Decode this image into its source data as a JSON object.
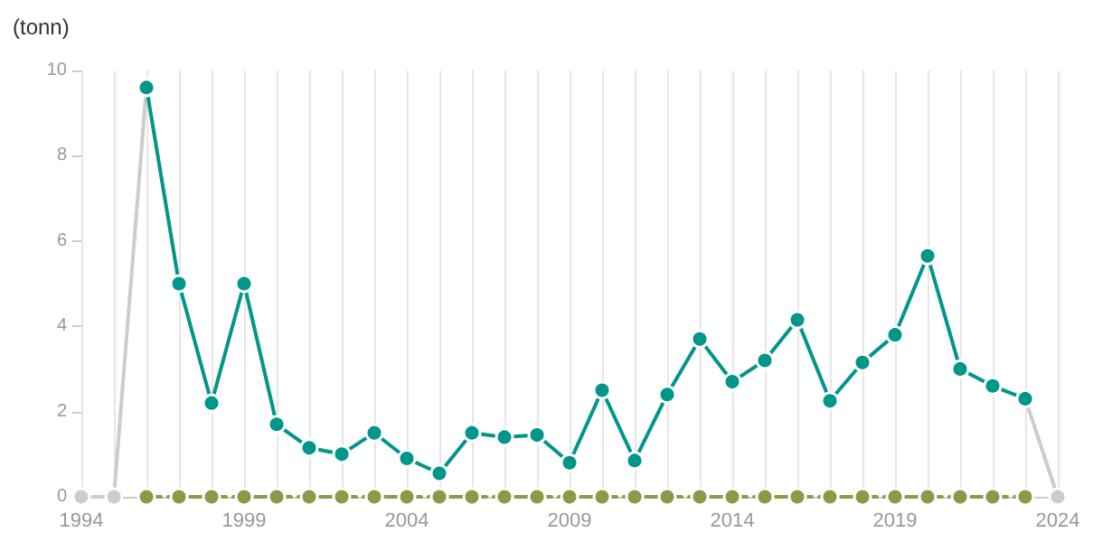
{
  "chart_data": {
    "type": "line",
    "ylabel": "(tonn)",
    "x": [
      1994,
      1995,
      1996,
      1997,
      1998,
      1999,
      2000,
      2001,
      2002,
      2003,
      2004,
      2005,
      2006,
      2007,
      2008,
      2009,
      2010,
      2011,
      2012,
      2013,
      2014,
      2015,
      2016,
      2017,
      2018,
      2019,
      2020,
      2021,
      2022,
      2023,
      2024
    ],
    "xlim": [
      1994,
      2024
    ],
    "xticks": [
      1994,
      {
        "value": 1995,
        "label": null
      },
      {
        "value": 1996,
        "label": null
      },
      {
        "value": 1997,
        "label": null
      },
      {
        "value": 1998,
        "label": null
      },
      1999,
      {
        "value": 2000,
        "label": null
      },
      {
        "value": 2001,
        "label": null
      },
      {
        "value": 2002,
        "label": null
      },
      {
        "value": 2003,
        "label": null
      },
      2004,
      {
        "value": 2005,
        "label": null
      },
      {
        "value": 2006,
        "label": null
      },
      {
        "value": 2007,
        "label": null
      },
      {
        "value": 2008,
        "label": null
      },
      2009,
      {
        "value": 2010,
        "label": null
      },
      {
        "value": 2011,
        "label": null
      },
      {
        "value": 2012,
        "label": null
      },
      {
        "value": 2013,
        "label": null
      },
      2014,
      {
        "value": 2015,
        "label": null
      },
      {
        "value": 2016,
        "label": null
      },
      {
        "value": 2017,
        "label": null
      },
      {
        "value": 2018,
        "label": null
      },
      2019,
      {
        "value": 2020,
        "label": null
      },
      {
        "value": 2021,
        "label": null
      },
      {
        "value": 2022,
        "label": null
      },
      {
        "value": 2023,
        "label": null
      },
      2024
    ],
    "ylim": [
      0,
      10
    ],
    "yticks": [
      0,
      2,
      4,
      6,
      8,
      10
    ],
    "grid": "x",
    "marker": "circle",
    "series": [
      {
        "color": "#cccccc",
        "values": [
          0,
          0,
          9.6,
          null,
          null,
          null,
          null,
          null,
          null,
          null,
          null,
          null,
          null,
          null,
          null,
          null,
          null,
          null,
          null,
          null,
          null,
          null,
          null,
          null,
          null,
          null,
          null,
          null,
          null,
          2.3,
          0
        ]
      },
      {
        "color": "#8c9a48",
        "line_style": "dashed",
        "values": [
          null,
          null,
          0,
          0,
          0,
          0,
          0,
          0,
          0,
          0,
          0,
          0,
          0,
          0,
          0,
          0,
          0,
          0,
          0,
          0,
          0,
          0,
          0,
          0,
          0,
          0,
          0,
          0,
          0,
          0,
          null
        ]
      },
      {
        "color": "#00968a",
        "values": [
          null,
          null,
          9.6,
          5.0,
          2.2,
          5.0,
          1.7,
          1.15,
          1.0,
          1.5,
          0.9,
          0.55,
          1.5,
          1.4,
          1.45,
          0.8,
          2.5,
          0.85,
          2.4,
          3.7,
          2.7,
          3.2,
          4.15,
          2.25,
          3.15,
          3.8,
          5.65,
          3.0,
          2.6,
          2.3,
          null
        ]
      }
    ]
  }
}
